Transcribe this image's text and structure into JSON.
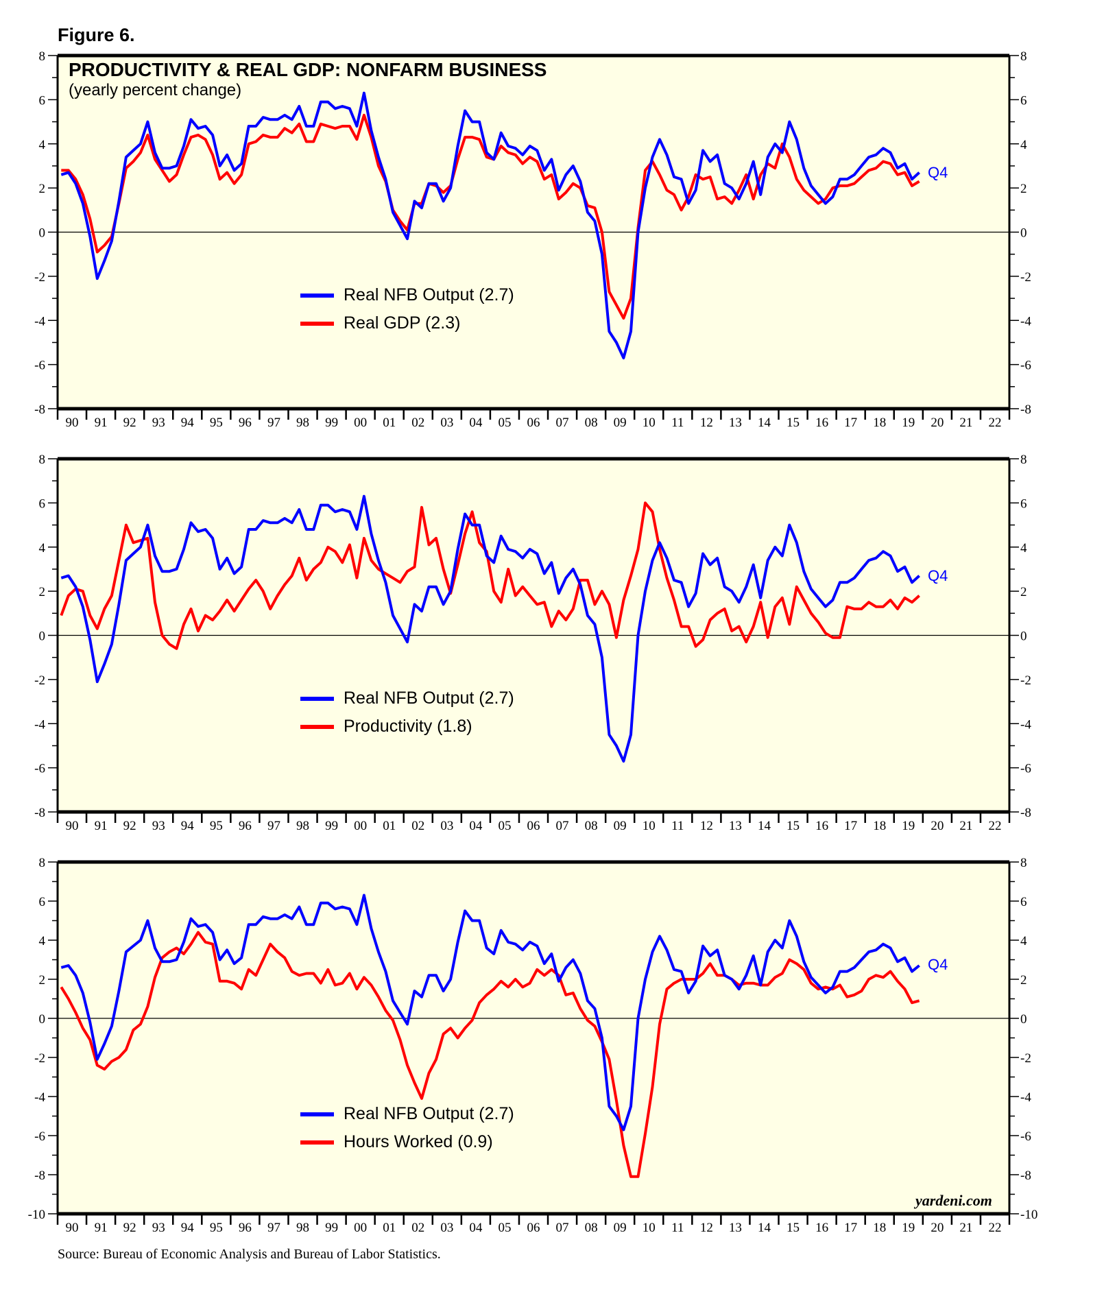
{
  "figure_label": "Figure 6.",
  "source": "Source: Bureau of Economic Analysis and Bureau of Labor Statistics.",
  "watermark": "yardeni.com",
  "colors": {
    "blue": "#0000ff",
    "red": "#ff0000",
    "plot_bg": "#ffffe6"
  },
  "chart_data": [
    {
      "type": "line",
      "title": "PRODUCTIVITY & REAL GDP: NONFARM BUSINESS",
      "subtitle": "(yearly percent change)",
      "x_start": 1990,
      "frequency": "quarterly",
      "xlim": [
        1990,
        2023
      ],
      "xticklabels": [
        "90",
        "91",
        "92",
        "93",
        "94",
        "95",
        "96",
        "97",
        "98",
        "99",
        "00",
        "01",
        "02",
        "03",
        "04",
        "05",
        "06",
        "07",
        "08",
        "09",
        "10",
        "11",
        "12",
        "13",
        "14",
        "15",
        "16",
        "17",
        "18",
        "19",
        "20",
        "21",
        "22"
      ],
      "ylim": [
        -8,
        8
      ],
      "yticks": [
        -8,
        -6,
        -4,
        -2,
        0,
        2,
        4,
        6,
        8
      ],
      "end_label": "Q4",
      "legend_placement": "center-left",
      "series": [
        {
          "name": "Real NFB Output (2.7)",
          "color": "#0000ff",
          "values": [
            2.6,
            2.7,
            2.2,
            1.3,
            -0.2,
            -2.1,
            -1.3,
            -0.4,
            1.4,
            3.4,
            3.7,
            4.0,
            5.0,
            3.6,
            2.9,
            2.9,
            3.0,
            3.9,
            5.1,
            4.7,
            4.8,
            4.4,
            3.0,
            3.5,
            2.8,
            3.1,
            4.8,
            4.8,
            5.2,
            5.1,
            5.1,
            5.3,
            5.1,
            5.7,
            4.8,
            4.8,
            5.9,
            5.9,
            5.6,
            5.7,
            5.6,
            4.8,
            6.3,
            4.6,
            3.4,
            2.4,
            0.9,
            0.3,
            -0.3,
            1.4,
            1.1,
            2.2,
            2.2,
            1.4,
            2.0,
            3.9,
            5.5,
            5.0,
            5.0,
            3.6,
            3.3,
            4.5,
            3.9,
            3.8,
            3.5,
            3.9,
            3.7,
            2.8,
            3.3,
            1.9,
            2.6,
            3.0,
            2.3,
            0.9,
            0.5,
            -1.0,
            -4.5,
            -5.0,
            -5.7,
            -4.5,
            0.0,
            2.0,
            3.4,
            4.2,
            3.5,
            2.5,
            2.4,
            1.3,
            1.9,
            3.7,
            3.2,
            3.5,
            2.2,
            2.0,
            1.5,
            2.2,
            3.2,
            1.7,
            3.4,
            4.0,
            3.6,
            5.0,
            4.2,
            2.9,
            2.1,
            1.7,
            1.3,
            1.6,
            2.4,
            2.4,
            2.6,
            3.0,
            3.4,
            3.5,
            3.8,
            3.6,
            2.9,
            3.1,
            2.4,
            2.7
          ]
        },
        {
          "name": "Real GDP (2.3)",
          "color": "#ff0000",
          "values": [
            2.8,
            2.8,
            2.4,
            1.7,
            0.6,
            -0.9,
            -0.6,
            -0.2,
            1.3,
            2.9,
            3.2,
            3.6,
            4.4,
            3.3,
            2.8,
            2.3,
            2.6,
            3.5,
            4.3,
            4.4,
            4.2,
            3.5,
            2.4,
            2.7,
            2.2,
            2.6,
            4.0,
            4.1,
            4.4,
            4.3,
            4.3,
            4.7,
            4.5,
            4.9,
            4.1,
            4.1,
            4.9,
            4.8,
            4.7,
            4.8,
            4.8,
            4.2,
            5.3,
            4.3,
            3.0,
            2.3,
            1.0,
            0.5,
            0.1,
            1.3,
            1.3,
            2.2,
            2.1,
            1.8,
            2.1,
            3.3,
            4.3,
            4.3,
            4.2,
            3.4,
            3.3,
            3.9,
            3.6,
            3.5,
            3.1,
            3.4,
            3.2,
            2.4,
            2.6,
            1.5,
            1.8,
            2.2,
            2.0,
            1.2,
            1.1,
            0.0,
            -2.7,
            -3.3,
            -3.9,
            -3.0,
            0.2,
            2.8,
            3.2,
            2.6,
            1.9,
            1.7,
            1.0,
            1.6,
            2.6,
            2.4,
            2.5,
            1.5,
            1.6,
            1.3,
            1.9,
            2.6,
            1.5,
            2.6,
            3.1,
            2.9,
            4.0,
            3.4,
            2.4,
            1.9,
            1.6,
            1.3,
            1.5,
            2.0,
            2.1,
            2.1,
            2.2,
            2.5,
            2.8,
            2.9,
            3.2,
            3.1,
            2.6,
            2.7,
            2.1,
            2.3
          ]
        }
      ]
    },
    {
      "type": "line",
      "x_start": 1990,
      "frequency": "quarterly",
      "xlim": [
        1990,
        2023
      ],
      "xticklabels": [
        "90",
        "91",
        "92",
        "93",
        "94",
        "95",
        "96",
        "97",
        "98",
        "99",
        "00",
        "01",
        "02",
        "03",
        "04",
        "05",
        "06",
        "07",
        "08",
        "09",
        "10",
        "11",
        "12",
        "13",
        "14",
        "15",
        "16",
        "17",
        "18",
        "19",
        "20",
        "21",
        "22"
      ],
      "ylim": [
        -8,
        8
      ],
      "yticks": [
        -8,
        -6,
        -4,
        -2,
        0,
        2,
        4,
        6,
        8
      ],
      "end_label": "Q4",
      "legend_placement": "center-left",
      "series": [
        {
          "name": "Real NFB Output (2.7)",
          "color": "#0000ff",
          "values": [
            2.6,
            2.7,
            2.2,
            1.3,
            -0.2,
            -2.1,
            -1.3,
            -0.4,
            1.4,
            3.4,
            3.7,
            4.0,
            5.0,
            3.6,
            2.9,
            2.9,
            3.0,
            3.9,
            5.1,
            4.7,
            4.8,
            4.4,
            3.0,
            3.5,
            2.8,
            3.1,
            4.8,
            4.8,
            5.2,
            5.1,
            5.1,
            5.3,
            5.1,
            5.7,
            4.8,
            4.8,
            5.9,
            5.9,
            5.6,
            5.7,
            5.6,
            4.8,
            6.3,
            4.6,
            3.4,
            2.4,
            0.9,
            0.3,
            -0.3,
            1.4,
            1.1,
            2.2,
            2.2,
            1.4,
            2.0,
            3.9,
            5.5,
            5.0,
            5.0,
            3.6,
            3.3,
            4.5,
            3.9,
            3.8,
            3.5,
            3.9,
            3.7,
            2.8,
            3.3,
            1.9,
            2.6,
            3.0,
            2.3,
            0.9,
            0.5,
            -1.0,
            -4.5,
            -5.0,
            -5.7,
            -4.5,
            0.0,
            2.0,
            3.4,
            4.2,
            3.5,
            2.5,
            2.4,
            1.3,
            1.9,
            3.7,
            3.2,
            3.5,
            2.2,
            2.0,
            1.5,
            2.2,
            3.2,
            1.7,
            3.4,
            4.0,
            3.6,
            5.0,
            4.2,
            2.9,
            2.1,
            1.7,
            1.3,
            1.6,
            2.4,
            2.4,
            2.6,
            3.0,
            3.4,
            3.5,
            3.8,
            3.6,
            2.9,
            3.1,
            2.4,
            2.7
          ]
        },
        {
          "name": "Productivity (1.8)",
          "color": "#ff0000",
          "values": [
            0.9,
            1.8,
            2.1,
            2.0,
            0.9,
            0.3,
            1.2,
            1.8,
            3.4,
            5.0,
            4.2,
            4.3,
            4.4,
            1.5,
            0.0,
            -0.4,
            -0.6,
            0.5,
            1.2,
            0.2,
            0.9,
            0.7,
            1.1,
            1.6,
            1.1,
            1.6,
            2.1,
            2.5,
            2.0,
            1.2,
            1.8,
            2.3,
            2.7,
            3.5,
            2.5,
            3.0,
            3.3,
            4.0,
            3.8,
            3.3,
            4.1,
            2.6,
            4.4,
            3.4,
            3.0,
            2.8,
            2.6,
            2.4,
            2.9,
            3.1,
            5.8,
            4.1,
            4.4,
            3.0,
            1.9,
            3.2,
            4.6,
            5.6,
            4.2,
            3.8,
            2.0,
            1.5,
            3.0,
            1.8,
            2.2,
            1.8,
            1.4,
            1.5,
            0.4,
            1.1,
            0.7,
            1.2,
            2.5,
            2.5,
            1.4,
            2.0,
            1.4,
            -0.1,
            1.6,
            2.7,
            3.9,
            6.0,
            5.6,
            3.9,
            2.6,
            1.6,
            0.4,
            0.4,
            -0.5,
            -0.2,
            0.7,
            1.0,
            1.2,
            0.2,
            0.4,
            -0.3,
            0.4,
            1.5,
            -0.1,
            1.3,
            1.7,
            0.5,
            2.2,
            1.6,
            1.0,
            0.6,
            0.1,
            -0.1,
            -0.1,
            1.3,
            1.2,
            1.2,
            1.5,
            1.3,
            1.3,
            1.6,
            1.2,
            1.7,
            1.5,
            1.8
          ]
        }
      ]
    },
    {
      "type": "line",
      "x_start": 1990,
      "frequency": "quarterly",
      "xlim": [
        1990,
        2023
      ],
      "xticklabels": [
        "90",
        "91",
        "92",
        "93",
        "94",
        "95",
        "96",
        "97",
        "98",
        "99",
        "00",
        "01",
        "02",
        "03",
        "04",
        "05",
        "06",
        "07",
        "08",
        "09",
        "10",
        "11",
        "12",
        "13",
        "14",
        "15",
        "16",
        "17",
        "18",
        "19",
        "20",
        "21",
        "22"
      ],
      "ylim": [
        -10,
        8
      ],
      "yticks": [
        -10,
        -8,
        -6,
        -4,
        -2,
        0,
        2,
        4,
        6,
        8
      ],
      "end_label": "Q4",
      "legend_placement": "bottom-left",
      "series": [
        {
          "name": "Real NFB Output (2.7)",
          "color": "#0000ff",
          "values": [
            2.6,
            2.7,
            2.2,
            1.3,
            -0.2,
            -2.1,
            -1.3,
            -0.4,
            1.4,
            3.4,
            3.7,
            4.0,
            5.0,
            3.6,
            2.9,
            2.9,
            3.0,
            3.9,
            5.1,
            4.7,
            4.8,
            4.4,
            3.0,
            3.5,
            2.8,
            3.1,
            4.8,
            4.8,
            5.2,
            5.1,
            5.1,
            5.3,
            5.1,
            5.7,
            4.8,
            4.8,
            5.9,
            5.9,
            5.6,
            5.7,
            5.6,
            4.8,
            6.3,
            4.6,
            3.4,
            2.4,
            0.9,
            0.3,
            -0.3,
            1.4,
            1.1,
            2.2,
            2.2,
            1.4,
            2.0,
            3.9,
            5.5,
            5.0,
            5.0,
            3.6,
            3.3,
            4.5,
            3.9,
            3.8,
            3.5,
            3.9,
            3.7,
            2.8,
            3.3,
            1.9,
            2.6,
            3.0,
            2.3,
            0.9,
            0.5,
            -1.0,
            -4.5,
            -5.0,
            -5.7,
            -4.5,
            0.0,
            2.0,
            3.4,
            4.2,
            3.5,
            2.5,
            2.4,
            1.3,
            1.9,
            3.7,
            3.2,
            3.5,
            2.2,
            2.0,
            1.5,
            2.2,
            3.2,
            1.7,
            3.4,
            4.0,
            3.6,
            5.0,
            4.2,
            2.9,
            2.1,
            1.7,
            1.3,
            1.6,
            2.4,
            2.4,
            2.6,
            3.0,
            3.4,
            3.5,
            3.8,
            3.6,
            2.9,
            3.1,
            2.4,
            2.7
          ]
        },
        {
          "name": "Hours Worked (0.9)",
          "color": "#ff0000",
          "values": [
            1.6,
            1.0,
            0.3,
            -0.5,
            -1.1,
            -2.4,
            -2.6,
            -2.2,
            -2.0,
            -1.6,
            -0.6,
            -0.3,
            0.6,
            2.1,
            3.1,
            3.4,
            3.6,
            3.3,
            3.8,
            4.4,
            3.9,
            3.8,
            1.9,
            1.9,
            1.8,
            1.5,
            2.5,
            2.2,
            3.0,
            3.8,
            3.4,
            3.1,
            2.4,
            2.2,
            2.3,
            2.3,
            1.8,
            2.5,
            1.7,
            1.8,
            2.3,
            1.5,
            2.1,
            1.7,
            1.1,
            0.4,
            -0.1,
            -1.1,
            -2.4,
            -3.3,
            -4.1,
            -2.8,
            -2.1,
            -0.8,
            -0.5,
            -1.0,
            -0.5,
            -0.1,
            0.8,
            1.2,
            1.5,
            1.9,
            1.6,
            2.0,
            1.6,
            1.8,
            2.5,
            2.2,
            2.5,
            2.2,
            1.2,
            1.3,
            0.5,
            -0.1,
            -0.4,
            -1.2,
            -2.1,
            -4.2,
            -6.5,
            -8.1,
            -8.1,
            -5.9,
            -3.5,
            -0.3,
            1.5,
            1.8,
            2.0,
            2.0,
            2.0,
            2.3,
            2.8,
            2.2,
            2.2,
            2.0,
            1.7,
            1.8,
            1.8,
            1.7,
            1.7,
            2.1,
            2.3,
            3.0,
            2.8,
            2.5,
            1.8,
            1.5,
            1.6,
            1.5,
            1.7,
            1.1,
            1.2,
            1.4,
            2.0,
            2.2,
            2.1,
            2.4,
            1.9,
            1.5,
            0.8,
            0.9
          ]
        }
      ]
    }
  ]
}
